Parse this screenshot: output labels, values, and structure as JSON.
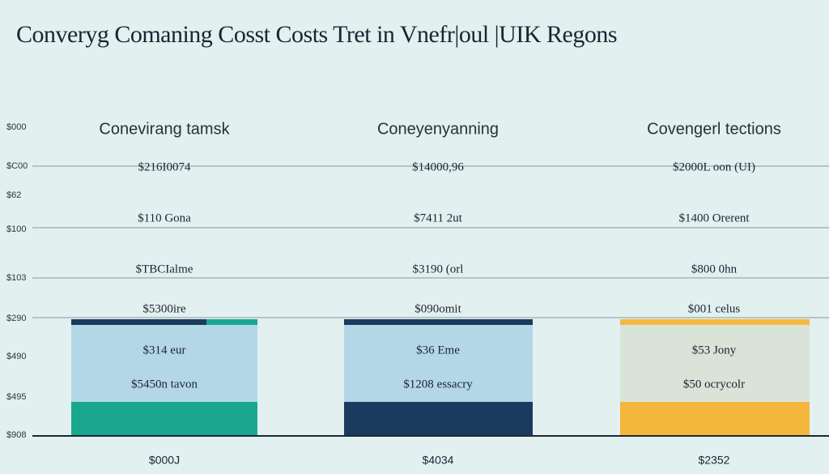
{
  "title": "Converyg Comaning Cosst Costs Tret in Vnefr|oul |UIK Regons",
  "axis_labels": [
    "$000",
    "$C00",
    "$62",
    "$100",
    "$103",
    "$290",
    "$490",
    "$495",
    "$908"
  ],
  "columns": [
    {
      "header": "Conevirang tamsk",
      "labels": [
        "$216I0074",
        "$110 Gona",
        "$TBCIalme",
        "$5300ire",
        "$314 eur",
        "$5450n tavon"
      ],
      "footer": "$000J"
    },
    {
      "header": "Coneyenyanning",
      "labels": [
        "$14000,96",
        "$7411 2ut",
        "$3190 (orl",
        "$090omit",
        "$36 Eme",
        "$1208 essacry"
      ],
      "footer": "$4034"
    },
    {
      "header": "Covengerl tections",
      "labels": [
        "$2000L oon (UI)",
        "$1400 Orerent",
        "$800 0hn",
        "$001 celus",
        "$53 Jony",
        "$50 ocrycolr"
      ],
      "footer": "$2352"
    }
  ]
}
